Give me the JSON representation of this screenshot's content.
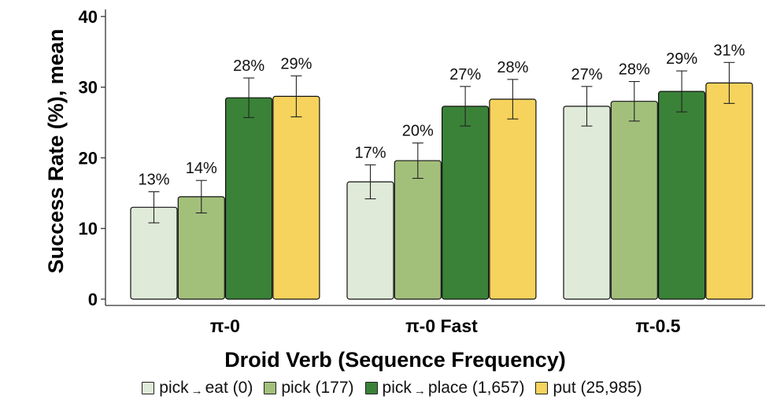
{
  "chart_data": {
    "type": "bar",
    "title": "",
    "xlabel": "Droid Verb (Sequence Frequency)",
    "ylabel": "Success Rate (%), mean",
    "ylim": [
      0,
      41
    ],
    "yticks": [
      0,
      10,
      20,
      30,
      40
    ],
    "categories": [
      "π-0",
      "π-0 Fast",
      "π-0.5"
    ],
    "series": [
      {
        "name": "pick→eat (0)",
        "legend_parts": [
          "pick",
          "→",
          "eat (0)"
        ],
        "color": "#e0ead8",
        "values": [
          13,
          16.6,
          27.3
        ],
        "labels": [
          "13%",
          "17%",
          "27%"
        ],
        "error": [
          2.2,
          2.4,
          2.8
        ]
      },
      {
        "name": "pick (177)",
        "legend_parts": [
          "pick (177)",
          "",
          ""
        ],
        "color": "#a3c07b",
        "values": [
          14.5,
          19.6,
          28
        ],
        "labels": [
          "14%",
          "20%",
          "28%"
        ],
        "error": [
          2.3,
          2.5,
          2.8
        ]
      },
      {
        "name": "pick→place (1,657)",
        "legend_parts": [
          "pick",
          "→",
          "place (1,657)"
        ],
        "color": "#3a8238",
        "values": [
          28.5,
          27.3,
          29.4
        ],
        "labels": [
          "28%",
          "27%",
          "29%"
        ],
        "error": [
          2.8,
          2.8,
          2.9
        ]
      },
      {
        "name": "put (25,985)",
        "legend_parts": [
          "put (25,985)",
          "",
          ""
        ],
        "color": "#f5d35c",
        "values": [
          28.7,
          28.3,
          30.6
        ],
        "labels": [
          "29%",
          "28%",
          "31%"
        ],
        "error": [
          2.9,
          2.8,
          2.9
        ]
      }
    ]
  }
}
